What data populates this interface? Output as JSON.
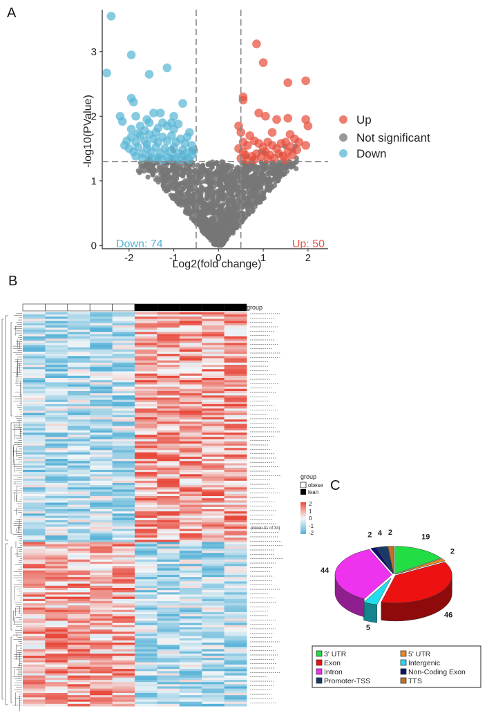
{
  "panel_letters": {
    "a": "A",
    "b": "B",
    "c": "C"
  },
  "colors": {
    "up": "#e8503f",
    "down": "#5ab7d6",
    "ns": "#777777",
    "heat_high": "#e8483a",
    "heat_mid": "#f4f6f8",
    "heat_low": "#55b1d7",
    "pie_utr3": "#22dd44",
    "pie_utr5": "#e88a22",
    "pie_exon": "#ee1111",
    "pie_intergenic": "#22ddee",
    "pie_intron": "#ee33ee",
    "pie_noncoding": "#101070",
    "pie_promoter": "#1a3a66",
    "pie_tts": "#c0702a"
  },
  "chart_data": [
    {
      "type": "scatter",
      "panel": "A",
      "title": "",
      "xlabel": "Log2(fold change)",
      "ylabel": "-log10(PValue)",
      "xlim": [
        -2.6,
        2.45
      ],
      "ylim": [
        -0.05,
        3.65
      ],
      "xticks": [
        "-2",
        "-1",
        "0",
        "1",
        "2"
      ],
      "xtick_values": [
        -2,
        -1,
        0,
        1,
        2
      ],
      "yticks": [
        "0",
        "1",
        "2",
        "3"
      ],
      "ytick_values": [
        0,
        1,
        2,
        3
      ],
      "thresholds": {
        "x": [
          -0.5,
          0.5
        ],
        "y": 1.3
      },
      "legend": [
        "Up",
        "Not significant",
        "Down"
      ],
      "down_label": "Down: 74",
      "up_label": "Up: 50",
      "series": [
        {
          "name": "Up",
          "points": [
            [
              0.55,
              2.3
            ],
            [
              0.55,
              2.25
            ],
            [
              0.85,
              3.12
            ],
            [
              1.0,
              2.83
            ],
            [
              1.55,
              2.52
            ],
            [
              1.95,
              2.55
            ],
            [
              0.45,
              1.85
            ],
            [
              0.5,
              1.75
            ],
            [
              0.55,
              1.6
            ],
            [
              0.9,
              2.05
            ],
            [
              1.05,
              2.0
            ],
            [
              1.3,
              1.95
            ],
            [
              1.55,
              1.97
            ],
            [
              1.95,
              1.95
            ],
            [
              2.0,
              1.85
            ],
            [
              0.45,
              1.5
            ],
            [
              0.55,
              1.45
            ],
            [
              0.65,
              1.55
            ],
            [
              0.8,
              1.62
            ],
            [
              0.9,
              1.58
            ],
            [
              1.0,
              1.52
            ],
            [
              1.1,
              1.6
            ],
            [
              1.2,
              1.55
            ],
            [
              1.3,
              1.5
            ],
            [
              1.4,
              1.58
            ],
            [
              1.5,
              1.6
            ],
            [
              1.6,
              1.53
            ],
            [
              1.7,
              1.65
            ],
            [
              1.8,
              1.6
            ],
            [
              1.95,
              1.55
            ],
            [
              0.6,
              1.4
            ],
            [
              0.75,
              1.38
            ],
            [
              0.85,
              1.42
            ],
            [
              0.95,
              1.37
            ],
            [
              1.05,
              1.45
            ],
            [
              1.15,
              1.4
            ],
            [
              1.25,
              1.35
            ],
            [
              1.35,
              1.42
            ],
            [
              1.45,
              1.38
            ],
            [
              1.55,
              1.45
            ],
            [
              1.65,
              1.4
            ],
            [
              1.75,
              1.48
            ],
            [
              0.7,
              1.7
            ],
            [
              1.2,
              1.75
            ],
            [
              1.6,
              1.72
            ],
            [
              0.5,
              1.35
            ],
            [
              0.65,
              1.32
            ],
            [
              0.8,
              1.33
            ],
            [
              1.1,
              1.34
            ],
            [
              1.5,
              1.33
            ]
          ]
        },
        {
          "name": "Down",
          "points": [
            [
              -2.4,
              3.55
            ],
            [
              -2.5,
              2.67
            ],
            [
              -1.95,
              2.95
            ],
            [
              -1.55,
              2.65
            ],
            [
              -1.15,
              2.75
            ],
            [
              -1.95,
              2.28
            ],
            [
              -1.9,
              2.22
            ],
            [
              -2.2,
              2.0
            ],
            [
              -2.15,
              1.92
            ],
            [
              -1.85,
              2.0
            ],
            [
              -1.6,
              1.95
            ],
            [
              -1.45,
              2.05
            ],
            [
              -1.3,
              2.05
            ],
            [
              -1.0,
              2.0
            ],
            [
              -0.8,
              2.2
            ],
            [
              -1.95,
              1.8
            ],
            [
              -1.75,
              1.85
            ],
            [
              -1.55,
              1.9
            ],
            [
              -1.35,
              1.82
            ],
            [
              -1.15,
              1.85
            ],
            [
              -1.0,
              1.8
            ],
            [
              -0.65,
              1.75
            ],
            [
              -2.05,
              1.62
            ],
            [
              -1.95,
              1.68
            ],
            [
              -1.85,
              1.6
            ],
            [
              -1.75,
              1.7
            ],
            [
              -1.65,
              1.62
            ],
            [
              -1.55,
              1.72
            ],
            [
              -1.45,
              1.65
            ],
            [
              -1.35,
              1.6
            ],
            [
              -1.25,
              1.68
            ],
            [
              -1.15,
              1.62
            ],
            [
              -1.05,
              1.7
            ],
            [
              -0.95,
              1.6
            ],
            [
              -0.85,
              1.65
            ],
            [
              -0.75,
              1.58
            ],
            [
              -0.6,
              1.55
            ],
            [
              -2.0,
              1.5
            ],
            [
              -1.9,
              1.45
            ],
            [
              -1.8,
              1.52
            ],
            [
              -1.7,
              1.42
            ],
            [
              -1.6,
              1.5
            ],
            [
              -1.5,
              1.45
            ],
            [
              -1.4,
              1.52
            ],
            [
              -1.3,
              1.43
            ],
            [
              -1.2,
              1.5
            ],
            [
              -1.1,
              1.45
            ],
            [
              -1.0,
              1.52
            ],
            [
              -0.9,
              1.42
            ],
            [
              -0.8,
              1.48
            ],
            [
              -0.7,
              1.44
            ],
            [
              -0.6,
              1.4
            ],
            [
              -1.85,
              1.38
            ],
            [
              -1.7,
              1.35
            ],
            [
              -1.55,
              1.37
            ],
            [
              -1.45,
              1.34
            ],
            [
              -1.35,
              1.36
            ],
            [
              -1.25,
              1.33
            ],
            [
              -1.15,
              1.37
            ],
            [
              -1.05,
              1.34
            ],
            [
              -0.95,
              1.36
            ],
            [
              -0.85,
              1.33
            ],
            [
              -0.75,
              1.36
            ],
            [
              -0.65,
              1.33
            ],
            [
              -1.65,
              1.78
            ],
            [
              -1.25,
              1.9
            ],
            [
              -0.9,
              1.88
            ],
            [
              -1.8,
              1.73
            ],
            [
              -0.7,
              1.68
            ],
            [
              -1.4,
              1.75
            ],
            [
              -2.1,
              1.55
            ],
            [
              -0.55,
              1.47
            ],
            [
              -1.05,
              1.9
            ],
            [
              -1.6,
              1.57
            ]
          ]
        },
        {
          "name": "Not significant",
          "envelope": "v-shaped cloud of roughly 4000 genes below the thresholds"
        }
      ]
    },
    {
      "type": "heatmap",
      "panel": "B",
      "n_columns": 10,
      "n_rows": 180,
      "group_label": "group",
      "column_groups": [
        "obese",
        "obese",
        "obese",
        "obese",
        "obese",
        "lean",
        "lean",
        "lean",
        "lean",
        "lean"
      ],
      "legend_title": "group",
      "legend_items": [
        "obese",
        "lean"
      ],
      "scale_ticks": [
        "2",
        "1",
        "0",
        "-1",
        "-2"
      ],
      "scale_range": [
        -2,
        2
      ],
      "row_labels_visible": [
        "(intron 31 of 34)"
      ]
    },
    {
      "type": "pie",
      "panel": "C",
      "style": "3d exploded",
      "slices": [
        {
          "name": "3' UTR",
          "value": 19,
          "label": "19"
        },
        {
          "name": "5' UTR",
          "value": 2,
          "label": "2"
        },
        {
          "name": "Exon",
          "value": 46,
          "label": "46"
        },
        {
          "name": "Intergenic",
          "value": 5,
          "label": "5"
        },
        {
          "name": "Intron",
          "value": 44,
          "label": "44"
        },
        {
          "name": "Non-Coding Exon",
          "value": 2,
          "label": "2"
        },
        {
          "name": "Promoter-TSS",
          "value": 4,
          "label": "4"
        },
        {
          "name": "TTS",
          "value": 2,
          "label": "2"
        }
      ],
      "legend": [
        "3' UTR",
        "5' UTR",
        "Exon",
        "Intergenic",
        "Intron",
        "Non-Coding Exon",
        "Promoter-TSS",
        "TTS"
      ]
    }
  ]
}
